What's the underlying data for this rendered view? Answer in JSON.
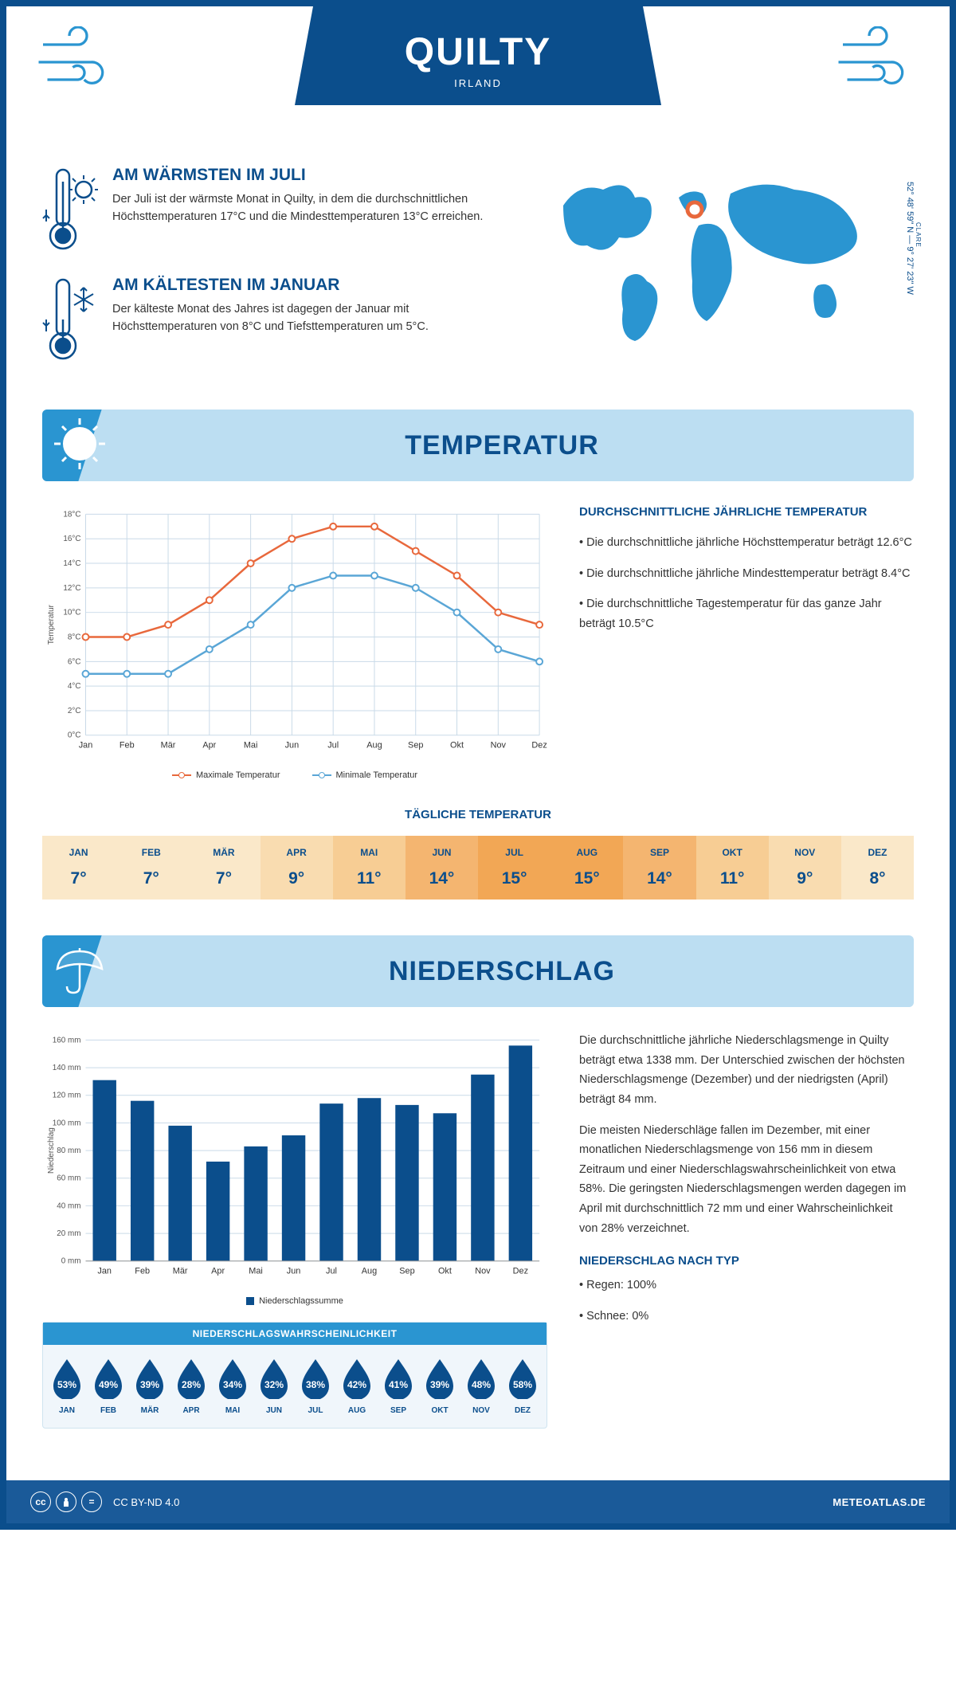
{
  "header": {
    "title": "QUILTY",
    "subtitle": "IRLAND"
  },
  "coords": {
    "region": "CLARE",
    "text": "52° 48' 59\" N — 9° 27' 23\" W"
  },
  "warm": {
    "title": "AM WÄRMSTEN IM JULI",
    "text": "Der Juli ist der wärmste Monat in Quilty, in dem die durchschnittlichen Höchsttemperaturen 17°C und die Mindesttemperaturen 13°C erreichen."
  },
  "cold": {
    "title": "AM KÄLTESTEN IM JANUAR",
    "text": "Der kälteste Monat des Jahres ist dagegen der Januar mit Höchsttemperaturen von 8°C und Tiefsttemperaturen um 5°C."
  },
  "temp_section": {
    "heading": "TEMPERATUR",
    "info_title": "DURCHSCHNITTLICHE JÄHRLICHE TEMPERATUR",
    "bullets": [
      "• Die durchschnittliche jährliche Höchsttemperatur beträgt 12.6°C",
      "• Die durchschnittliche jährliche Mindesttemperatur beträgt 8.4°C",
      "• Die durchschnittliche Tagestemperatur für das ganze Jahr beträgt 10.5°C"
    ],
    "chart": {
      "type": "line",
      "months": [
        "Jan",
        "Feb",
        "Mär",
        "Apr",
        "Mai",
        "Jun",
        "Jul",
        "Aug",
        "Sep",
        "Okt",
        "Nov",
        "Dez"
      ],
      "max_series": [
        8,
        8,
        9,
        11,
        14,
        16,
        17,
        17,
        15,
        13,
        10,
        9
      ],
      "min_series": [
        5,
        5,
        5,
        7,
        9,
        12,
        13,
        13,
        12,
        10,
        7,
        6
      ],
      "max_color": "#e8683c",
      "min_color": "#5aa6d6",
      "ylim": [
        0,
        18
      ],
      "ytick_step": 2,
      "grid_color": "#c9dae8",
      "ylabel": "Temperatur",
      "legend_max": "Maximale Temperatur",
      "legend_min": "Minimale Temperatur"
    },
    "daily": {
      "title": "TÄGLICHE TEMPERATUR",
      "months": [
        "JAN",
        "FEB",
        "MÄR",
        "APR",
        "MAI",
        "JUN",
        "JUL",
        "AUG",
        "SEP",
        "OKT",
        "NOV",
        "DEZ"
      ],
      "values": [
        "7°",
        "7°",
        "7°",
        "9°",
        "11°",
        "14°",
        "15°",
        "15°",
        "14°",
        "11°",
        "9°",
        "8°"
      ],
      "colors": [
        "#fae8c9",
        "#fae8c9",
        "#fae8c9",
        "#f9dcb0",
        "#f7cd94",
        "#f4b570",
        "#f2a755",
        "#f2a755",
        "#f4b570",
        "#f7cd94",
        "#f9dcb0",
        "#fae8c9"
      ]
    }
  },
  "precip_section": {
    "heading": "NIEDERSCHLAG",
    "chart": {
      "type": "bar",
      "months": [
        "Jan",
        "Feb",
        "Mär",
        "Apr",
        "Mai",
        "Jun",
        "Jul",
        "Aug",
        "Sep",
        "Okt",
        "Nov",
        "Dez"
      ],
      "values": [
        131,
        116,
        98,
        72,
        83,
        91,
        114,
        118,
        113,
        107,
        135,
        156
      ],
      "bar_color": "#0b4e8c",
      "ylim": [
        0,
        160
      ],
      "ytick_step": 20,
      "ylabel": "Niederschlag",
      "grid_color": "#c9dae8",
      "legend": "Niederschlagssumme"
    },
    "text1": "Die durchschnittliche jährliche Niederschlagsmenge in Quilty beträgt etwa 1338 mm. Der Unterschied zwischen der höchsten Niederschlagsmenge (Dezember) und der niedrigsten (April) beträgt 84 mm.",
    "text2": "Die meisten Niederschläge fallen im Dezember, mit einer monatlichen Niederschlagsmenge von 156 mm in diesem Zeitraum und einer Niederschlagswahrscheinlichkeit von etwa 58%. Die geringsten Niederschlagsmengen werden dagegen im April mit durchschnittlich 72 mm und einer Wahrscheinlichkeit von 28% verzeichnet.",
    "prob": {
      "title": "NIEDERSCHLAGSWAHRSCHEINLICHKEIT",
      "months": [
        "JAN",
        "FEB",
        "MÄR",
        "APR",
        "MAI",
        "JUN",
        "JUL",
        "AUG",
        "SEP",
        "OKT",
        "NOV",
        "DEZ"
      ],
      "values": [
        "53%",
        "49%",
        "39%",
        "28%",
        "34%",
        "32%",
        "38%",
        "42%",
        "41%",
        "39%",
        "48%",
        "58%"
      ],
      "drop_color": "#0b4e8c"
    },
    "by_type": {
      "title": "NIEDERSCHLAG NACH TYP",
      "items": [
        "• Regen: 100%",
        "• Schnee: 0%"
      ]
    }
  },
  "footer": {
    "license": "CC BY-ND 4.0",
    "brand": "METEOATLAS.DE"
  }
}
